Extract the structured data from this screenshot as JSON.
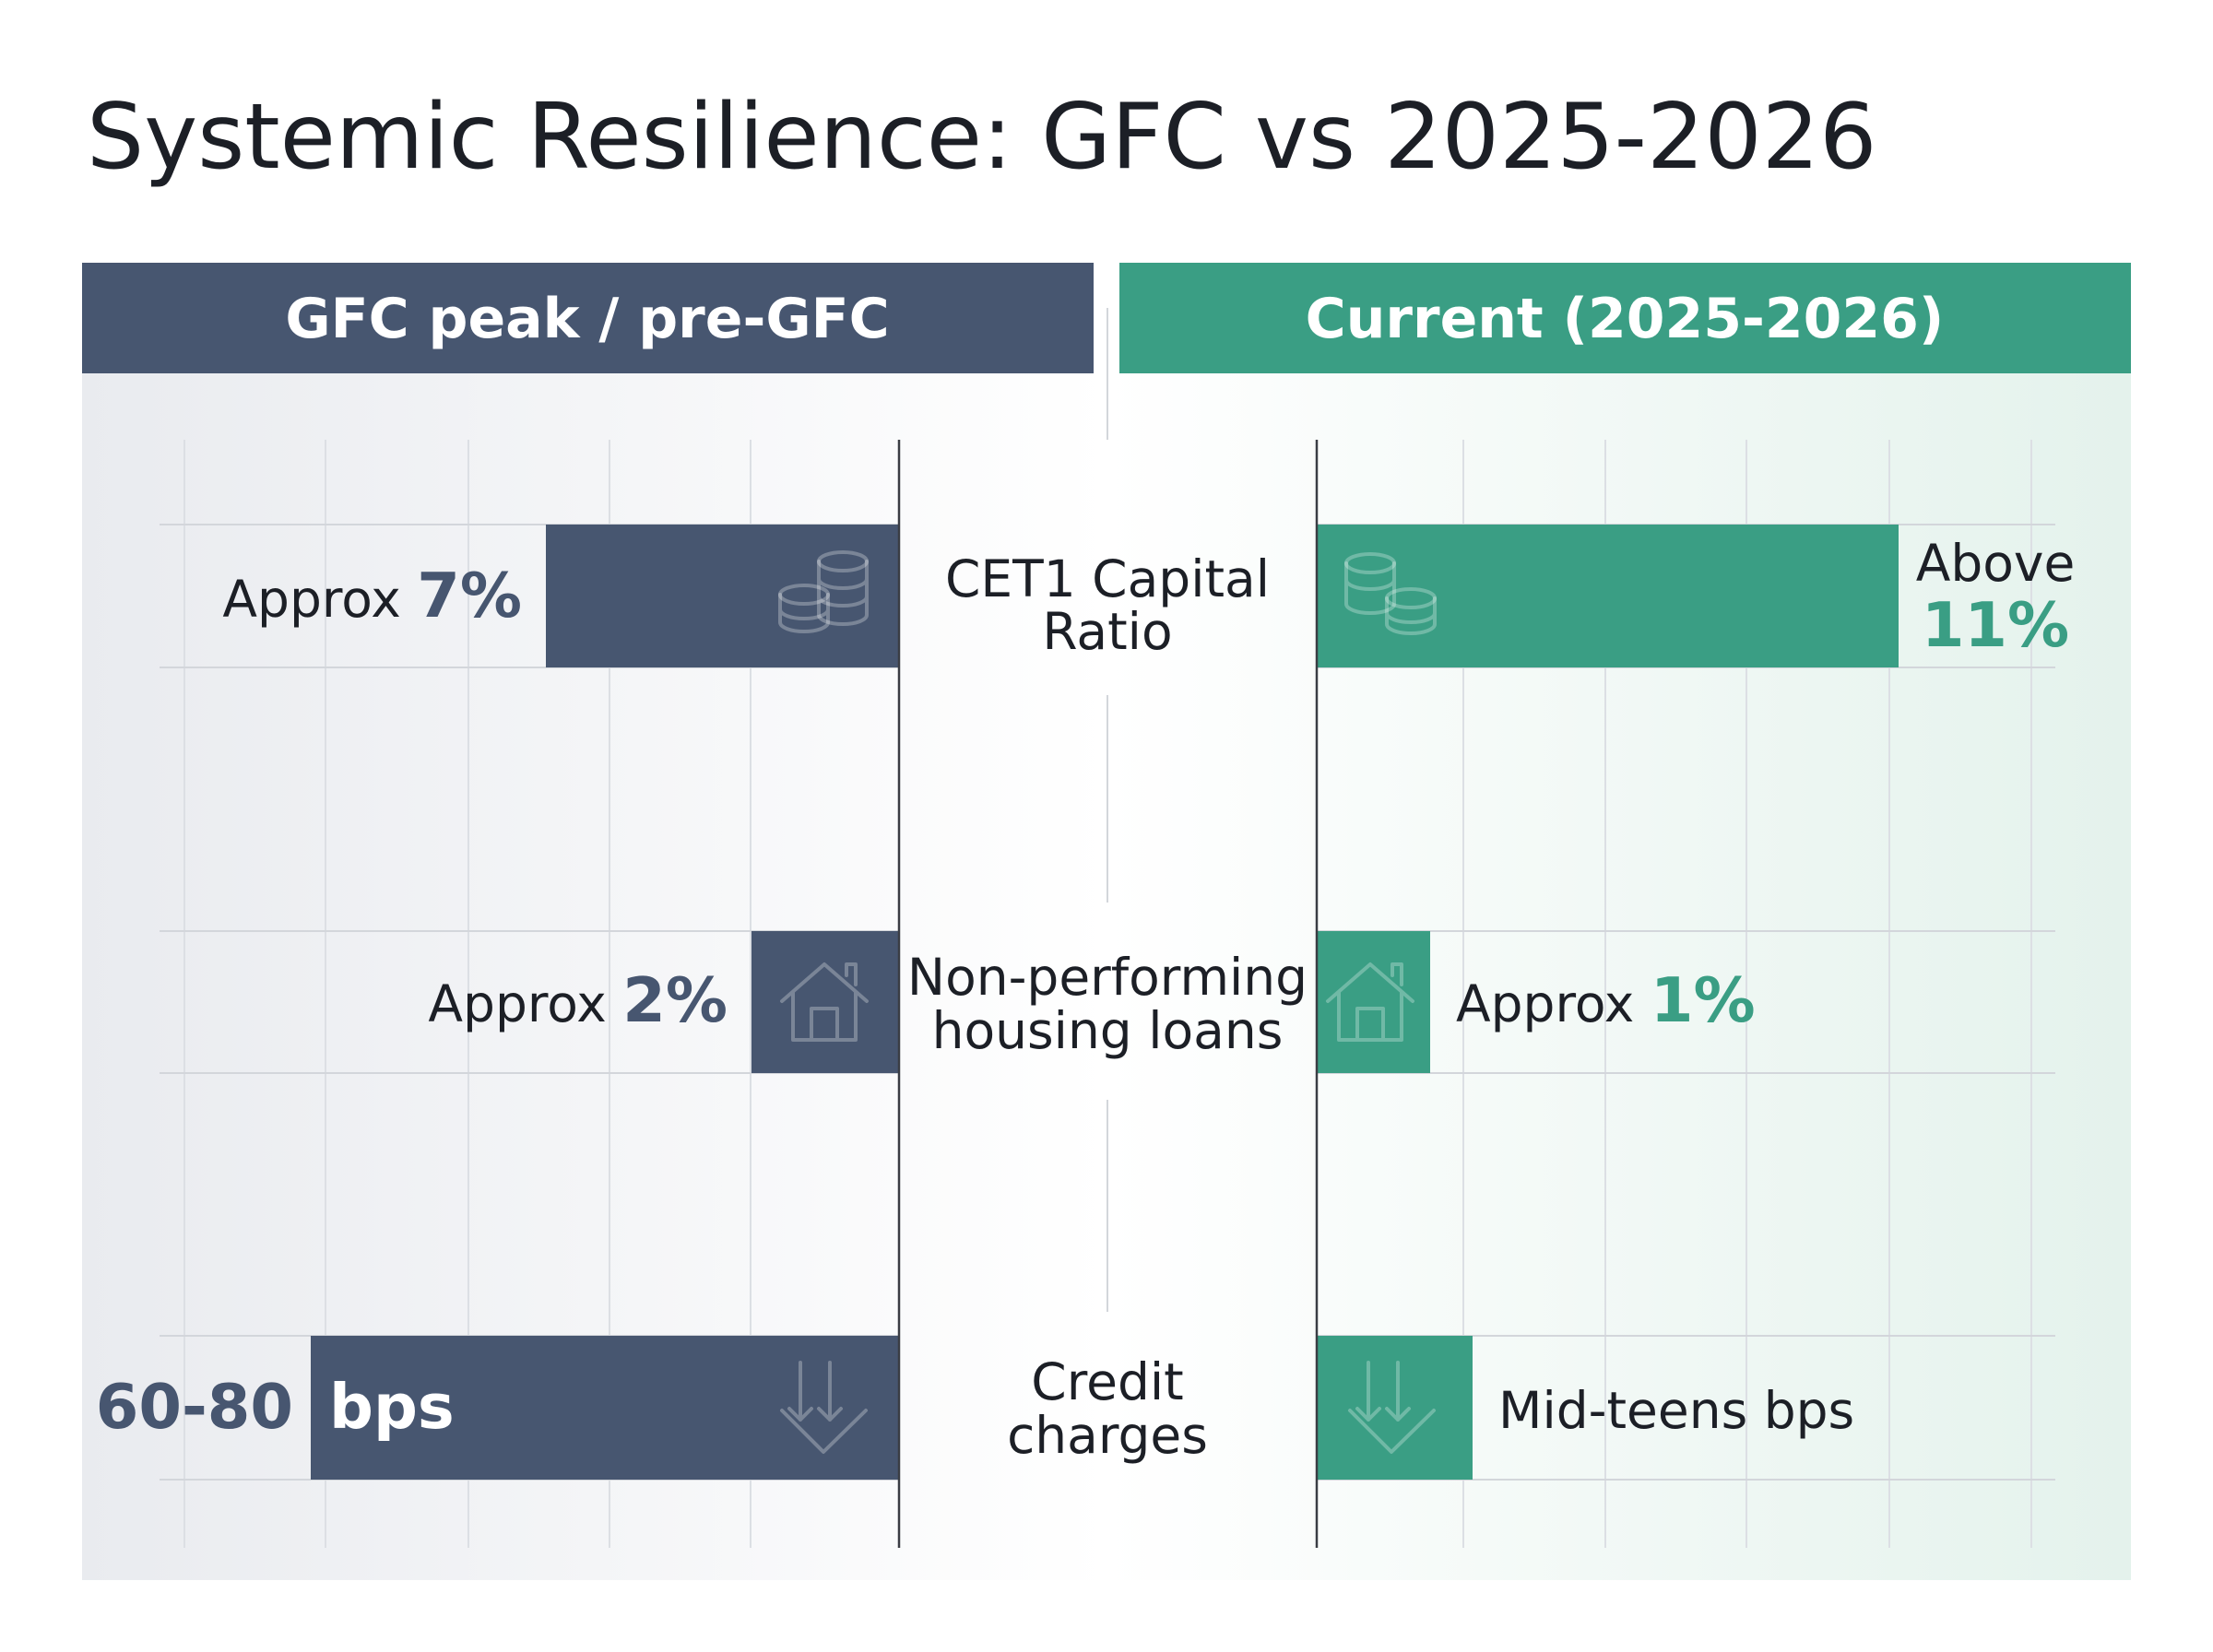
{
  "title": "Systemic Resilience: GFC vs 2025-2026",
  "headers": {
    "left": "GFC peak / pre-GFC",
    "right": "Current (2025-2026)"
  },
  "rows": [
    {
      "metric": [
        "CET1 Capital",
        "Ratio"
      ],
      "left": {
        "prefix": "Approx",
        "value": "7%"
      },
      "right": {
        "prefix": "Above",
        "value": "11%"
      }
    },
    {
      "metric": [
        "Non-performing",
        "housing loans"
      ],
      "left": {
        "prefix": "Approx",
        "value": "2%"
      },
      "right": {
        "prefix": "Approx",
        "value": "1%"
      }
    },
    {
      "metric": [
        "Credit",
        "charges"
      ],
      "left": {
        "value": "60-80",
        "suffix": "bps"
      },
      "right": {
        "text": "Mid-teens bps"
      }
    }
  ]
}
